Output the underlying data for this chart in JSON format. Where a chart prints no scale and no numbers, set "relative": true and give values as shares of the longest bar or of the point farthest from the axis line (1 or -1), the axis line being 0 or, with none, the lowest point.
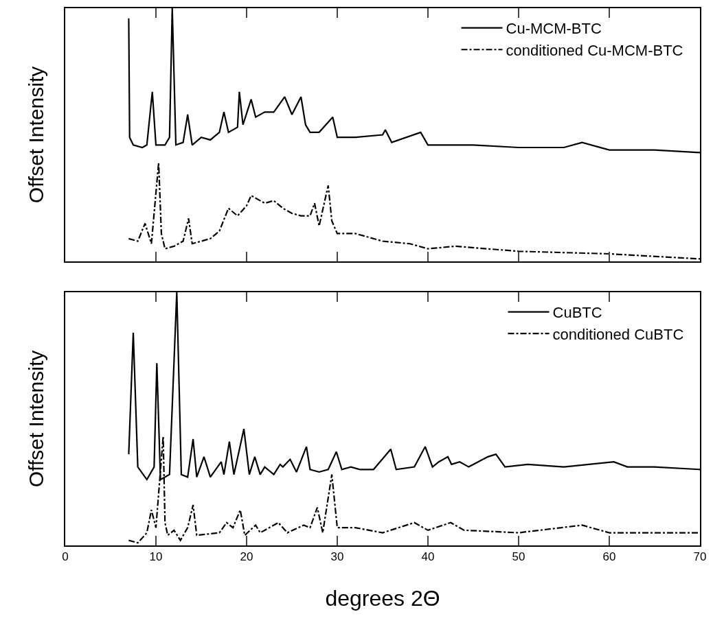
{
  "chart_data": [
    {
      "type": "line",
      "ylabel": "Offset Intensity",
      "relative": true,
      "xlim": [
        0,
        70
      ],
      "xticks": [
        0,
        10,
        20,
        30,
        40,
        50,
        60,
        70
      ],
      "tick_labels": false,
      "legend": "top right",
      "series": [
        {
          "name": "Cu-MCM-BTC",
          "color": "#000000",
          "line_style": "solid",
          "x": [
            7,
            7.1,
            7.5,
            8.5,
            9,
            9.6,
            10,
            11,
            11.5,
            11.8,
            12.2,
            13,
            13.5,
            14,
            15,
            16,
            17,
            17.5,
            18,
            19,
            19.2,
            19.6,
            20.5,
            21,
            22,
            23,
            24.2,
            25,
            26,
            26.5,
            27,
            28,
            29.5,
            30,
            32,
            35,
            35.3,
            36,
            39.2,
            40,
            45,
            50,
            55,
            57,
            60,
            65,
            70
          ],
          "values": [
            0.96,
            0.49,
            0.46,
            0.45,
            0.46,
            0.67,
            0.46,
            0.46,
            0.49,
            1.0,
            0.46,
            0.47,
            0.58,
            0.46,
            0.49,
            0.48,
            0.51,
            0.59,
            0.51,
            0.53,
            0.67,
            0.54,
            0.64,
            0.57,
            0.59,
            0.59,
            0.65,
            0.58,
            0.65,
            0.54,
            0.51,
            0.51,
            0.57,
            0.49,
            0.49,
            0.5,
            0.52,
            0.47,
            0.51,
            0.46,
            0.46,
            0.45,
            0.45,
            0.47,
            0.44,
            0.44,
            0.43
          ]
        },
        {
          "name": "conditioned Cu-MCM-BTC",
          "color": "#000000",
          "line_style": "dashed",
          "x": [
            7,
            8,
            8.8,
            9.5,
            10.3,
            10.6,
            11,
            12,
            13,
            13.6,
            14,
            16,
            17,
            18,
            19,
            20,
            20.5,
            22,
            23,
            24,
            25,
            26,
            27,
            27.5,
            28,
            29,
            29.4,
            30,
            32,
            35,
            38,
            40,
            43,
            50,
            60,
            70
          ],
          "values": [
            0.09,
            0.08,
            0.15,
            0.07,
            0.39,
            0.11,
            0.05,
            0.06,
            0.08,
            0.17,
            0.07,
            0.09,
            0.12,
            0.21,
            0.18,
            0.22,
            0.26,
            0.23,
            0.24,
            0.21,
            0.19,
            0.18,
            0.18,
            0.23,
            0.14,
            0.3,
            0.16,
            0.11,
            0.11,
            0.08,
            0.07,
            0.05,
            0.06,
            0.04,
            0.03,
            0.01
          ]
        }
      ]
    },
    {
      "type": "line",
      "ylabel": "Offset Intensity",
      "xlabel": "degrees 2Θ",
      "relative": true,
      "xlim": [
        0,
        70
      ],
      "xticks": [
        0,
        10,
        20,
        30,
        40,
        50,
        60,
        70
      ],
      "tick_labels": "x",
      "legend": "top right",
      "series": [
        {
          "name": "CuBTC",
          "color": "#000000",
          "line_style": "solid",
          "x": [
            7.0,
            7.5,
            8,
            9,
            9.8,
            10.1,
            10.5,
            11.5,
            12.3,
            12.8,
            13.5,
            14.1,
            14.5,
            15.3,
            16,
            17.2,
            17.5,
            18.1,
            18.6,
            19.7,
            20.3,
            20.9,
            21.5,
            22,
            23,
            23.7,
            24,
            24.8,
            25.5,
            26.6,
            27,
            28,
            29,
            29.9,
            30.5,
            31.5,
            32.5,
            34,
            35.9,
            36.5,
            38.5,
            39.7,
            40.5,
            41.2,
            42.2,
            42.6,
            43.5,
            44.5,
            46.6,
            47.5,
            48.5,
            51,
            55,
            60.5,
            62,
            65,
            70
          ],
          "values": [
            0.36,
            0.84,
            0.31,
            0.26,
            0.31,
            0.72,
            0.26,
            0.28,
            1.0,
            0.28,
            0.27,
            0.42,
            0.27,
            0.35,
            0.27,
            0.33,
            0.28,
            0.41,
            0.28,
            0.46,
            0.28,
            0.35,
            0.28,
            0.31,
            0.28,
            0.32,
            0.31,
            0.34,
            0.29,
            0.39,
            0.3,
            0.29,
            0.3,
            0.37,
            0.3,
            0.31,
            0.3,
            0.3,
            0.38,
            0.3,
            0.31,
            0.39,
            0.31,
            0.33,
            0.35,
            0.32,
            0.33,
            0.31,
            0.35,
            0.36,
            0.31,
            0.32,
            0.31,
            0.33,
            0.31,
            0.31,
            0.3
          ]
        },
        {
          "name": "conditioned CuBTC",
          "color": "#000000",
          "line_style": "dashed",
          "x": [
            7,
            8,
            9,
            9.5,
            10,
            10.8,
            11,
            11.3,
            12,
            12.7,
            13.5,
            14.1,
            14.5,
            17,
            17.8,
            18.5,
            19.3,
            19.8,
            21,
            21.5,
            23.5,
            24.5,
            26.3,
            27,
            27.8,
            28.4,
            29.4,
            30,
            32,
            35,
            38.5,
            40,
            42.5,
            44,
            50,
            57,
            60,
            70
          ],
          "values": [
            0.02,
            0.01,
            0.05,
            0.14,
            0.07,
            0.43,
            0.09,
            0.04,
            0.06,
            0.02,
            0.07,
            0.16,
            0.04,
            0.05,
            0.09,
            0.07,
            0.14,
            0.04,
            0.08,
            0.05,
            0.09,
            0.05,
            0.08,
            0.07,
            0.15,
            0.05,
            0.28,
            0.07,
            0.07,
            0.05,
            0.09,
            0.06,
            0.09,
            0.06,
            0.05,
            0.08,
            0.05,
            0.05
          ]
        }
      ]
    }
  ]
}
